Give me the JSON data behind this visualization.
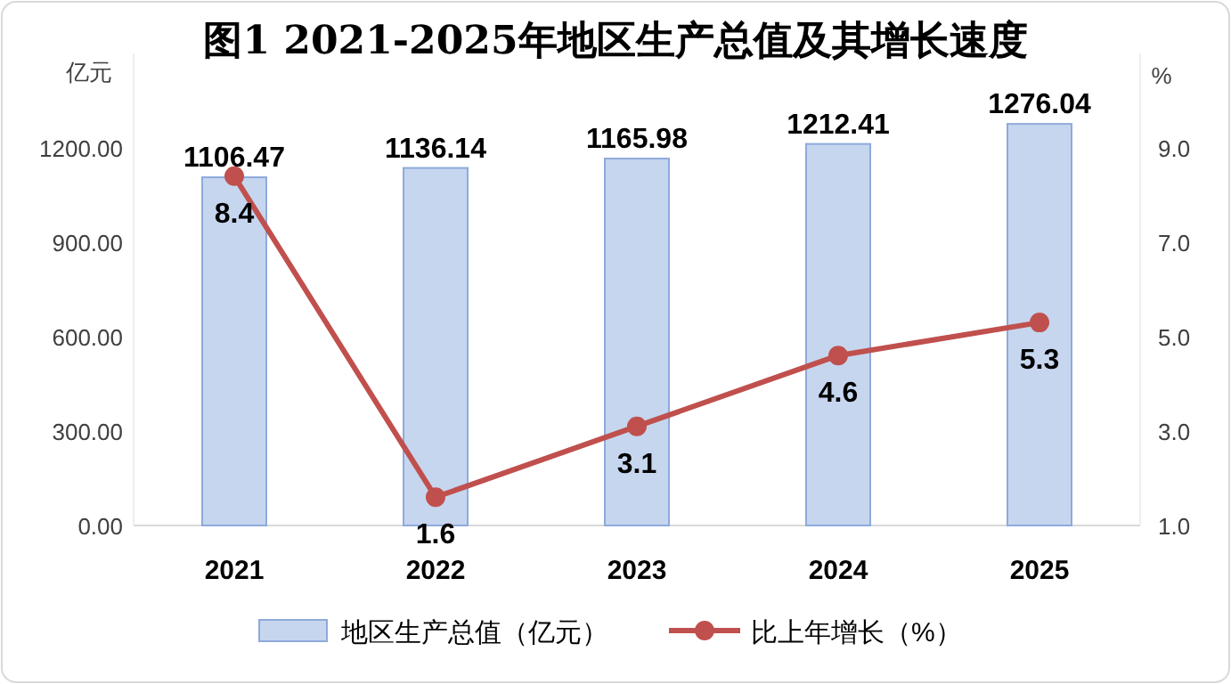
{
  "chart_data": {
    "type": "bar",
    "title": "图1 2021-2025年地区生产总值及其增长速度",
    "ylabel": "亿元",
    "y2label": "%",
    "categories": [
      "2021",
      "2022",
      "2023",
      "2024",
      "2025"
    ],
    "series": [
      {
        "name": "地区生产总值（亿元）",
        "color": "#c6d6ef",
        "values": [
          1106.47,
          1136.14,
          1165.98,
          1212.41,
          1276.04
        ]
      },
      {
        "name": "比上年增长（%）",
        "type": "line",
        "axis": "y2",
        "color": "#c0504d",
        "values": [
          8.4,
          1.6,
          3.1,
          4.6,
          5.3
        ]
      }
    ],
    "ylim": [
      0,
      1500
    ],
    "yticks": [
      {
        "value": 0,
        "label": "0.00"
      },
      {
        "value": 300,
        "label": "300.00"
      },
      {
        "value": 600,
        "label": "600.00"
      },
      {
        "value": 900,
        "label": "900.00"
      },
      {
        "value": 1200,
        "label": "1200.00"
      }
    ],
    "y2lim": [
      1,
      11
    ],
    "y2ticks": [
      {
        "value": 1,
        "label": "1.0"
      },
      {
        "value": 3,
        "label": "3.0"
      },
      {
        "value": 5,
        "label": "5.0"
      },
      {
        "value": 7,
        "label": "7.0"
      },
      {
        "value": 9,
        "label": "9.0"
      }
    ],
    "data_labels": true,
    "legend": "bottom",
    "marker": "circle",
    "line_style": "solid",
    "grid": false
  }
}
